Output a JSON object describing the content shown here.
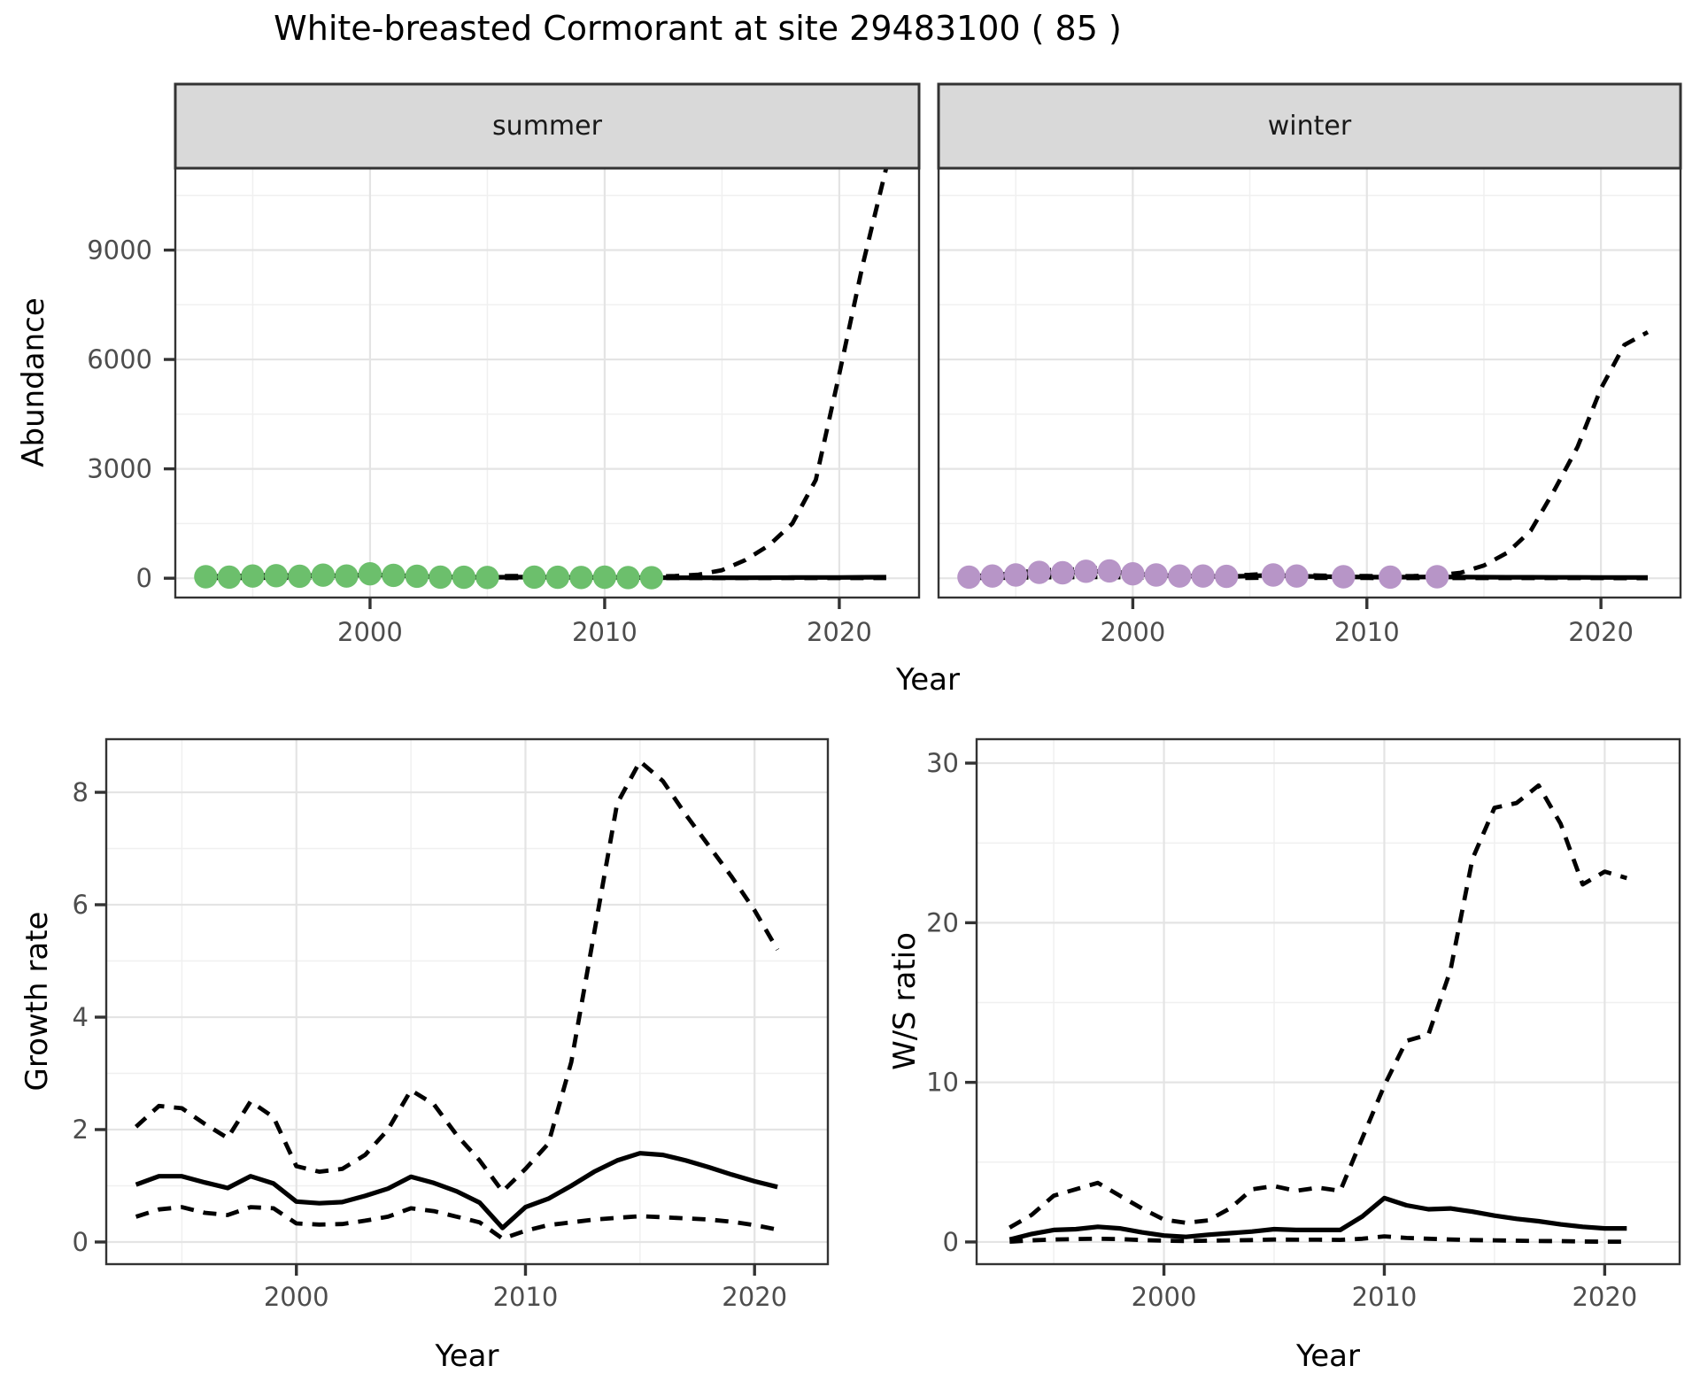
{
  "title": "White-breasted Cormorant at site 29483100 ( 85 )",
  "colors": {
    "summer_point": "#6CBF6C",
    "winter_point": "#B795C7",
    "line": "#000000",
    "strip_bg": "#D9D9D9",
    "panel_border": "#333333",
    "grid_major": "#E4E4E4",
    "grid_minor": "#F0F0F0",
    "tick_mark": "#333333",
    "tick_text": "#4D4D4D"
  },
  "strip_labels": [
    "summer",
    "winter"
  ],
  "chart_data": [
    {
      "id": "abundance-summer",
      "type": "line",
      "facet_label": "summer",
      "xlabel": "Year",
      "ylabel": "Abundance",
      "xlim": [
        1991.7,
        2023.4
      ],
      "ylim": [
        -530,
        11246
      ],
      "x_ticks": [
        2000,
        2010,
        2020
      ],
      "x_minor": [
        1995,
        2005,
        2015
      ],
      "y_ticks": [
        0,
        3000,
        6000,
        9000
      ],
      "y_minor": [
        1500,
        4500,
        7500,
        10500
      ],
      "legend": "none",
      "grid": "on",
      "series": [
        {
          "name": "lower_ci",
          "style": "dashed",
          "x": [
            1993,
            1994,
            1995,
            1996,
            1997,
            1998,
            1999,
            2000,
            2001,
            2002,
            2003,
            2004,
            2005,
            2006,
            2007,
            2008,
            2009,
            2010,
            2011,
            2012,
            2013,
            2014,
            2015,
            2016,
            2017,
            2018,
            2019,
            2020,
            2021,
            2022
          ],
          "y": [
            8,
            7,
            10,
            12,
            11,
            14,
            12,
            18,
            14,
            10,
            7,
            5,
            5,
            5,
            5,
            4,
            4,
            4,
            3,
            3,
            3,
            3,
            3,
            3,
            3,
            3,
            4,
            4,
            5,
            5
          ]
        },
        {
          "name": "upper_ci",
          "style": "dashed",
          "x": [
            1993,
            1994,
            1995,
            1996,
            1997,
            1998,
            1999,
            2000,
            2001,
            2002,
            2003,
            2004,
            2005,
            2006,
            2007,
            2008,
            2009,
            2010,
            2011,
            2012,
            2013,
            2014,
            2015,
            2016,
            2017,
            2018,
            2019,
            2020,
            2021,
            2022
          ],
          "y": [
            60,
            55,
            80,
            90,
            85,
            100,
            90,
            140,
            110,
            90,
            60,
            50,
            55,
            60,
            60,
            55,
            50,
            55,
            50,
            45,
            60,
            100,
            220,
            500,
            900,
            1500,
            2700,
            5600,
            8600,
            11250
          ]
        },
        {
          "name": "median",
          "style": "solid",
          "x": [
            1993,
            1994,
            1995,
            1996,
            1997,
            1998,
            1999,
            2000,
            2001,
            2002,
            2003,
            2004,
            2005,
            2006,
            2007,
            2008,
            2009,
            2010,
            2011,
            2012,
            2013,
            2014,
            2015,
            2016,
            2017,
            2018,
            2019,
            2020,
            2021,
            2022
          ],
          "y": [
            40,
            35,
            55,
            65,
            60,
            75,
            65,
            100,
            75,
            55,
            35,
            28,
            25,
            28,
            30,
            26,
            22,
            25,
            20,
            16,
            14,
            14,
            14,
            15,
            16,
            18,
            20,
            22,
            25,
            28
          ]
        }
      ],
      "points": {
        "name": "observed-abundance",
        "color_key": "summer_point",
        "x": [
          1993,
          1994,
          1995,
          1996,
          1997,
          1998,
          1999,
          2000,
          2001,
          2002,
          2003,
          2004,
          2005,
          2007,
          2008,
          2009,
          2010,
          2011,
          2012
        ],
        "y": [
          40,
          30,
          60,
          70,
          55,
          85,
          60,
          120,
          80,
          55,
          30,
          25,
          20,
          30,
          25,
          20,
          28,
          18,
          15
        ]
      }
    },
    {
      "id": "abundance-winter",
      "type": "line",
      "facet_label": "winter",
      "xlabel": "Year",
      "ylabel": "Abundance",
      "xlim": [
        1991.7,
        2023.4
      ],
      "ylim": [
        -530,
        11246
      ],
      "x_ticks": [
        2000,
        2010,
        2020
      ],
      "x_minor": [
        1995,
        2005,
        2015
      ],
      "y_ticks": [
        0,
        3000,
        6000,
        9000
      ],
      "y_minor": [
        1500,
        4500,
        7500,
        10500
      ],
      "legend": "none",
      "grid": "on",
      "series": [
        {
          "name": "lower_ci",
          "style": "dashed",
          "x": [
            1993,
            1994,
            1995,
            1996,
            1997,
            1998,
            1999,
            2000,
            2001,
            2002,
            2003,
            2004,
            2005,
            2006,
            2007,
            2008,
            2009,
            2010,
            2011,
            2012,
            2013,
            2014,
            2015,
            2016,
            2017,
            2018,
            2019,
            2020,
            2021,
            2022
          ],
          "y": [
            5,
            10,
            15,
            25,
            25,
            30,
            30,
            20,
            15,
            10,
            10,
            8,
            10,
            15,
            10,
            8,
            7,
            6,
            5,
            5,
            5,
            5,
            4,
            4,
            4,
            3,
            3,
            3,
            2,
            2
          ]
        },
        {
          "name": "upper_ci",
          "style": "dashed",
          "x": [
            1993,
            1994,
            1995,
            1996,
            1997,
            1998,
            1999,
            2000,
            2001,
            2002,
            2003,
            2004,
            2005,
            2006,
            2007,
            2008,
            2009,
            2010,
            2011,
            2012,
            2013,
            2014,
            2015,
            2016,
            2017,
            2018,
            2019,
            2020,
            2021,
            2022
          ],
          "y": [
            50,
            90,
            140,
            230,
            220,
            270,
            280,
            180,
            140,
            100,
            95,
            80,
            95,
            130,
            90,
            75,
            65,
            60,
            55,
            60,
            80,
            150,
            350,
            700,
            1300,
            2400,
            3600,
            5200,
            6400,
            6750
          ]
        },
        {
          "name": "median",
          "style": "solid",
          "x": [
            1993,
            1994,
            1995,
            1996,
            1997,
            1998,
            1999,
            2000,
            2001,
            2002,
            2003,
            2004,
            2005,
            2006,
            2007,
            2008,
            2009,
            2010,
            2011,
            2012,
            2013,
            2014,
            2015,
            2016,
            2017,
            2018,
            2019,
            2020,
            2021,
            2022
          ],
          "y": [
            25,
            55,
            85,
            150,
            145,
            180,
            190,
            115,
            85,
            60,
            55,
            45,
            60,
            85,
            55,
            45,
            38,
            32,
            28,
            30,
            35,
            30,
            28,
            26,
            25,
            24,
            23,
            22,
            21,
            20
          ]
        }
      ],
      "points": {
        "name": "observed-abundance",
        "color_key": "winter_point",
        "x": [
          1993,
          1994,
          1995,
          1996,
          1997,
          1998,
          1999,
          2000,
          2001,
          2002,
          2003,
          2004,
          2006,
          2007,
          2009,
          2011,
          2013
        ],
        "y": [
          30,
          60,
          90,
          160,
          150,
          190,
          200,
          120,
          90,
          60,
          60,
          50,
          90,
          60,
          40,
          30,
          40
        ]
      }
    },
    {
      "id": "growth",
      "type": "line",
      "facet_label": "",
      "xlabel": "Year",
      "ylabel": "Growth rate",
      "xlim": [
        1991.7,
        2023.2
      ],
      "ylim": [
        -0.394,
        8.945
      ],
      "x_ticks": [
        2000,
        2010,
        2020
      ],
      "x_minor": [
        1995,
        2005,
        2015
      ],
      "y_ticks": [
        0,
        2,
        4,
        6,
        8
      ],
      "y_minor": [
        1,
        3,
        5,
        7
      ],
      "legend": "none",
      "grid": "on",
      "series": [
        {
          "name": "lower_ci",
          "style": "dashed",
          "x": [
            1993,
            1994,
            1995,
            1996,
            1997,
            1998,
            1999,
            2000,
            2001,
            2002,
            2003,
            2004,
            2005,
            2006,
            2007,
            2008,
            2009,
            2010,
            2011,
            2012,
            2013,
            2014,
            2015,
            2016,
            2017,
            2018,
            2019,
            2020,
            2021
          ],
          "y": [
            0.45,
            0.58,
            0.62,
            0.52,
            0.48,
            0.62,
            0.6,
            0.33,
            0.31,
            0.32,
            0.38,
            0.45,
            0.6,
            0.55,
            0.45,
            0.35,
            0.06,
            0.2,
            0.3,
            0.35,
            0.4,
            0.43,
            0.46,
            0.44,
            0.42,
            0.4,
            0.36,
            0.3,
            0.22
          ]
        },
        {
          "name": "upper_ci",
          "style": "dashed",
          "x": [
            1993,
            1994,
            1995,
            1996,
            1997,
            1998,
            1999,
            2000,
            2001,
            2002,
            2003,
            2004,
            2005,
            2006,
            2007,
            2008,
            2009,
            2010,
            2011,
            2012,
            2013,
            2014,
            2015,
            2016,
            2017,
            2018,
            2019,
            2020,
            2021
          ],
          "y": [
            2.05,
            2.42,
            2.38,
            2.1,
            1.85,
            2.5,
            2.22,
            1.35,
            1.25,
            1.3,
            1.55,
            2.0,
            2.7,
            2.45,
            1.9,
            1.45,
            0.9,
            1.3,
            1.75,
            3.2,
            5.5,
            7.8,
            8.55,
            8.2,
            7.6,
            7.05,
            6.5,
            5.9,
            5.2
          ]
        },
        {
          "name": "median",
          "style": "solid",
          "x": [
            1993,
            1994,
            1995,
            1996,
            1997,
            1998,
            1999,
            2000,
            2001,
            2002,
            2003,
            2004,
            2005,
            2006,
            2007,
            2008,
            2009,
            2010,
            2011,
            2012,
            2013,
            2014,
            2015,
            2016,
            2017,
            2018,
            2019,
            2020,
            2021
          ],
          "y": [
            1.02,
            1.17,
            1.17,
            1.06,
            0.96,
            1.17,
            1.04,
            0.72,
            0.69,
            0.71,
            0.82,
            0.95,
            1.16,
            1.05,
            0.9,
            0.7,
            0.25,
            0.62,
            0.77,
            1.0,
            1.25,
            1.45,
            1.58,
            1.55,
            1.45,
            1.33,
            1.2,
            1.08,
            0.98
          ]
        }
      ],
      "points": null
    },
    {
      "id": "ratio",
      "type": "line",
      "facet_label": "",
      "xlabel": "Year",
      "ylabel": "W/S ratio",
      "xlim": [
        1991.5,
        2023.4
      ],
      "ylim": [
        -1.39,
        31.5
      ],
      "x_ticks": [
        2000,
        2010,
        2020
      ],
      "x_minor": [
        1995,
        2005,
        2015
      ],
      "y_ticks": [
        0,
        10,
        20,
        30
      ],
      "y_minor": [
        5,
        15,
        25
      ],
      "legend": "none",
      "grid": "on",
      "series": [
        {
          "name": "lower_ci",
          "style": "dashed",
          "x": [
            1993,
            1994,
            1995,
            1996,
            1997,
            1998,
            1999,
            2000,
            2001,
            2002,
            2003,
            2004,
            2005,
            2006,
            2007,
            2008,
            2009,
            2010,
            2011,
            2012,
            2013,
            2014,
            2015,
            2016,
            2017,
            2018,
            2019,
            2020,
            2021
          ],
          "y": [
            0.02,
            0.1,
            0.15,
            0.18,
            0.2,
            0.18,
            0.12,
            0.08,
            0.06,
            0.08,
            0.1,
            0.12,
            0.15,
            0.14,
            0.14,
            0.13,
            0.2,
            0.35,
            0.25,
            0.2,
            0.15,
            0.12,
            0.1,
            0.08,
            0.06,
            0.05,
            0.03,
            0.02,
            0.02
          ]
        },
        {
          "name": "upper_ci",
          "style": "dashed",
          "x": [
            1993,
            1994,
            1995,
            1996,
            1997,
            1998,
            1999,
            2000,
            2001,
            2002,
            2003,
            2004,
            2005,
            2006,
            2007,
            2008,
            2009,
            2010,
            2011,
            2012,
            2013,
            2014,
            2015,
            2016,
            2017,
            2018,
            2019,
            2020,
            2021
          ],
          "y": [
            0.9,
            1.7,
            2.9,
            3.3,
            3.7,
            2.9,
            2.1,
            1.4,
            1.2,
            1.35,
            2.1,
            3.3,
            3.5,
            3.2,
            3.4,
            3.2,
            6.5,
            9.8,
            12.6,
            13.0,
            17.0,
            24.0,
            27.2,
            27.5,
            28.6,
            26.2,
            22.4,
            23.2,
            22.8
          ]
        },
        {
          "name": "median",
          "style": "solid",
          "x": [
            1993,
            1994,
            1995,
            1996,
            1997,
            1998,
            1999,
            2000,
            2001,
            2002,
            2003,
            2004,
            2005,
            2006,
            2007,
            2008,
            2009,
            2010,
            2011,
            2012,
            2013,
            2014,
            2015,
            2016,
            2017,
            2018,
            2019,
            2020,
            2021
          ],
          "y": [
            0.15,
            0.5,
            0.75,
            0.8,
            0.95,
            0.85,
            0.6,
            0.4,
            0.32,
            0.45,
            0.55,
            0.65,
            0.8,
            0.75,
            0.75,
            0.75,
            1.6,
            2.75,
            2.3,
            2.05,
            2.1,
            1.9,
            1.65,
            1.45,
            1.3,
            1.1,
            0.95,
            0.85,
            0.85
          ]
        }
      ],
      "points": null
    }
  ]
}
